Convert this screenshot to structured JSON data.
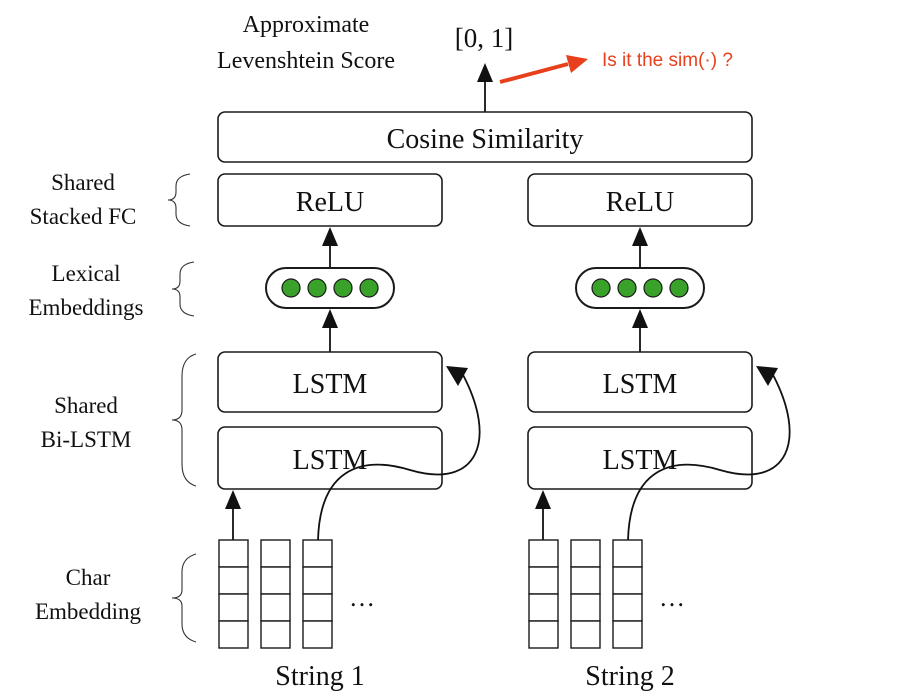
{
  "title": {
    "line1": "Approximate",
    "line2": "Levenshtein Score"
  },
  "output_range": "[0, 1]",
  "annotation": {
    "text": "Is it the sim(·) ?",
    "color": "#e8401c"
  },
  "cosine_box": "Cosine Similarity",
  "left_labels": {
    "fc_line1": "Shared",
    "fc_line2": "Stacked FC",
    "lex_line1": "Lexical",
    "lex_line2": "Embeddings",
    "bilstm_line1": "Shared",
    "bilstm_line2": "Bi-LSTM",
    "char_line1": "Char",
    "char_line2": "Embedding"
  },
  "branches": [
    {
      "relu": "ReLU",
      "lstm_top": "LSTM",
      "lstm_bottom": "LSTM",
      "ellipsis": "…",
      "string": "String 1"
    },
    {
      "relu": "ReLU",
      "lstm_top": "LSTM",
      "lstm_bottom": "LSTM",
      "ellipsis": "…",
      "string": "String 2"
    }
  ],
  "embedding_dot_color": "#3aa12a"
}
